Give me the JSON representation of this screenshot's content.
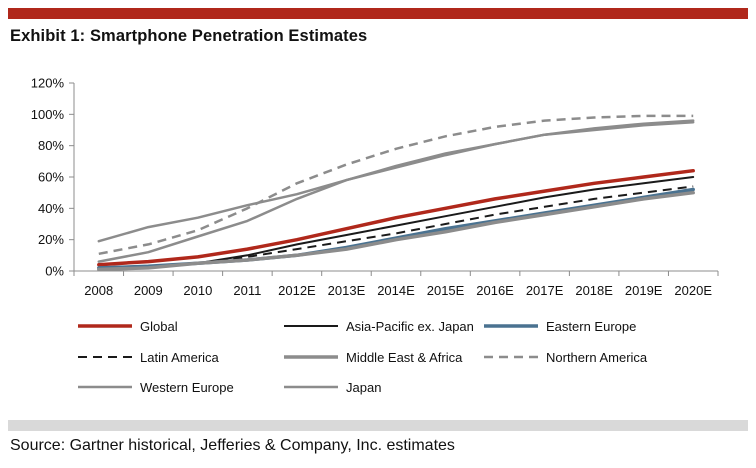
{
  "header": {
    "title": "Exhibit 1: Smartphone Penetration Estimates",
    "bar_color": "#b0281b"
  },
  "footer": {
    "source": "Source: Gartner historical, Jefferies & Company, Inc. estimates",
    "bar_color": "#d9d9d9"
  },
  "chart_data": {
    "type": "line",
    "title": "Exhibit 1: Smartphone Penetration Estimates",
    "xlabel": "",
    "ylabel": "",
    "categories": [
      "2008",
      "2009",
      "2010",
      "2011",
      "2012E",
      "2013E",
      "2014E",
      "2015E",
      "2016E",
      "2017E",
      "2018E",
      "2019E",
      "2020E"
    ],
    "yticks": [
      "0%",
      "20%",
      "40%",
      "60%",
      "80%",
      "100%",
      "120%"
    ],
    "ylim": [
      0,
      120
    ],
    "unit": "%",
    "grid": false,
    "legend_position": "bottom",
    "series": [
      {
        "name": "Global",
        "color": "#b0281b",
        "dash": "solid",
        "width": 3.5,
        "values": [
          4,
          6,
          9,
          14,
          20,
          27,
          34,
          40,
          46,
          51,
          56,
          60,
          64
        ]
      },
      {
        "name": "Asia-Pacific ex. Japan",
        "color": "#1a1a1a",
        "dash": "solid",
        "width": 2,
        "values": [
          1,
          3,
          5,
          10,
          17,
          23,
          29,
          35,
          41,
          47,
          52,
          56,
          60
        ]
      },
      {
        "name": "Eastern Europe",
        "color": "#4a7290",
        "dash": "solid",
        "width": 3.5,
        "values": [
          2,
          3,
          5,
          7,
          10,
          15,
          21,
          27,
          32,
          37,
          42,
          47,
          52
        ]
      },
      {
        "name": "Latin America",
        "color": "#1a1a1a",
        "dash": "dashed",
        "width": 2,
        "values": [
          1,
          2,
          5,
          9,
          14,
          19,
          24,
          30,
          36,
          41,
          46,
          50,
          54
        ]
      },
      {
        "name": "Middle East & Africa",
        "color": "#8c8c8c",
        "dash": "solid",
        "width": 3.5,
        "values": [
          1,
          2,
          5,
          7,
          10,
          14,
          20,
          25,
          31,
          36,
          41,
          46,
          50
        ]
      },
      {
        "name": "Northern America",
        "color": "#8c8c8c",
        "dash": "dashed",
        "width": 2.5,
        "values": [
          11,
          17,
          26,
          40,
          56,
          68,
          78,
          86,
          92,
          96,
          98,
          99,
          99
        ]
      },
      {
        "name": "Western Europe",
        "color": "#8c8c8c",
        "dash": "solid",
        "width": 2.5,
        "values": [
          19,
          28,
          34,
          42,
          49,
          58,
          66,
          74,
          81,
          87,
          91,
          94,
          96
        ]
      },
      {
        "name": "Japan",
        "color": "#8c8c8c",
        "dash": "solid",
        "width": 2.5,
        "values": [
          6,
          12,
          22,
          32,
          46,
          58,
          67,
          75,
          81,
          87,
          90,
          93,
          95
        ]
      }
    ]
  }
}
